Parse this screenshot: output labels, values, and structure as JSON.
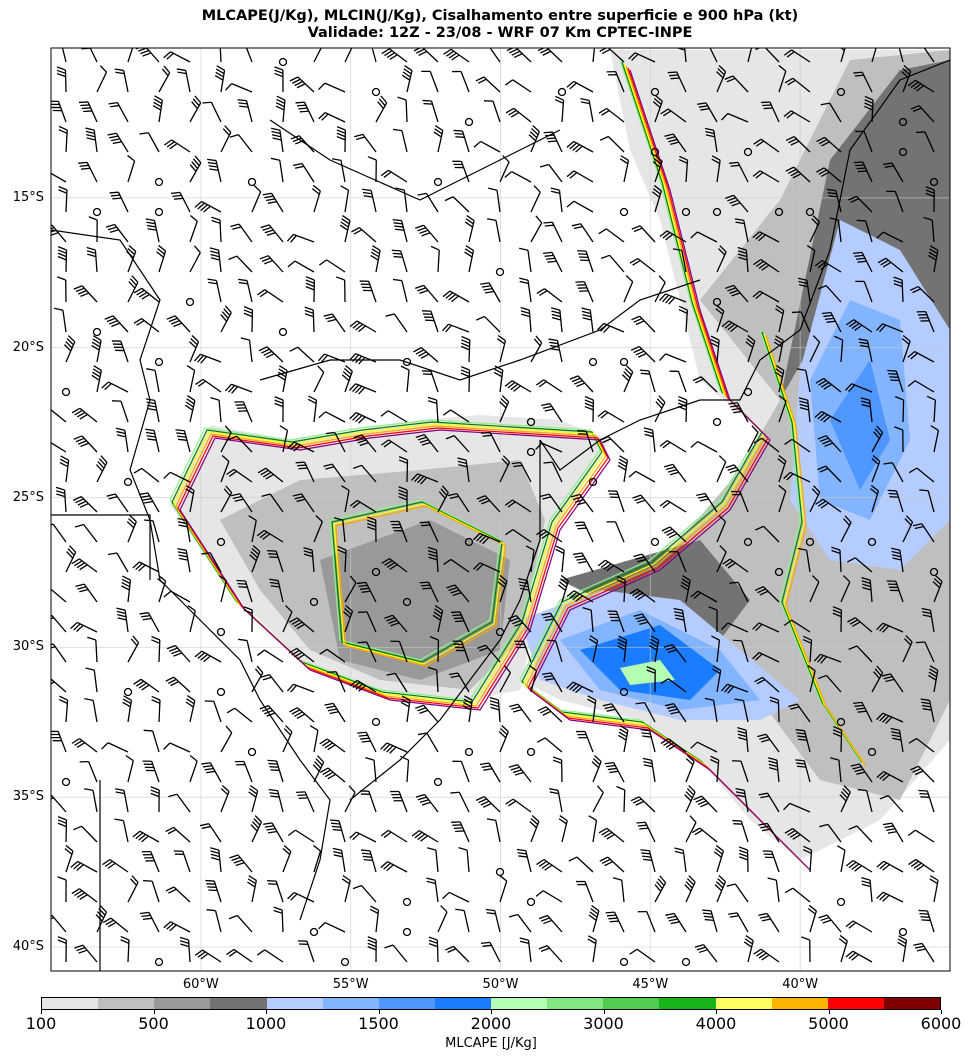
{
  "title": {
    "line1": "MLCAPE(J/Kg), MLCIN(J/Kg), Cisalhamento entre superficie e 900 hPa (kt)",
    "line2": "Validade: 12Z - 23/08 - WRF 07 Km CPTEC-INPE"
  },
  "map": {
    "lon_range": [
      -65,
      -35
    ],
    "lat_range": [
      -10,
      -40.8
    ],
    "lat_labels": [
      {
        "lat": -15,
        "label": "15°S"
      },
      {
        "lat": -20,
        "label": "20°S"
      },
      {
        "lat": -25,
        "label": "25°S"
      },
      {
        "lat": -30,
        "label": "30°S"
      },
      {
        "lat": -35,
        "label": "35°S"
      },
      {
        "lat": -40,
        "label": "40°S"
      }
    ],
    "lon_labels": [
      {
        "lon": -60,
        "label": "60°W"
      },
      {
        "lon": -55,
        "label": "55°W"
      },
      {
        "lon": -50,
        "label": "50°W"
      },
      {
        "lon": -45,
        "label": "45°W"
      },
      {
        "lon": -40,
        "label": "40°W"
      }
    ],
    "cin_contour_levels": [
      25,
      50,
      100,
      125,
      150,
      200
    ],
    "cin_contour_colors": [
      "#90ee90",
      "#008000",
      "#ffff00",
      "#ffa500",
      "#ff0000",
      "#800080"
    ],
    "grid": true
  },
  "colorbar": {
    "label": "MLCAPE [J/Kg]",
    "boundaries": [
      100,
      250,
      500,
      750,
      1000,
      1250,
      1500,
      1750,
      2000,
      2500,
      3000,
      3500,
      4000,
      4500,
      5000,
      5500,
      6000
    ],
    "tick_labels": [
      "100",
      "500",
      "1000",
      "1500",
      "2000",
      "3000",
      "4000",
      "5000",
      "6000"
    ],
    "colors": [
      "#e6e6e6",
      "#bfbfbf",
      "#999999",
      "#737373",
      "#b4ccff",
      "#82b4ff",
      "#4f96ff",
      "#1a7dff",
      "#b4ffb4",
      "#82e682",
      "#50cd50",
      "#19b419",
      "#ffff64",
      "#ffb400",
      "#ff0000",
      "#800000"
    ]
  }
}
